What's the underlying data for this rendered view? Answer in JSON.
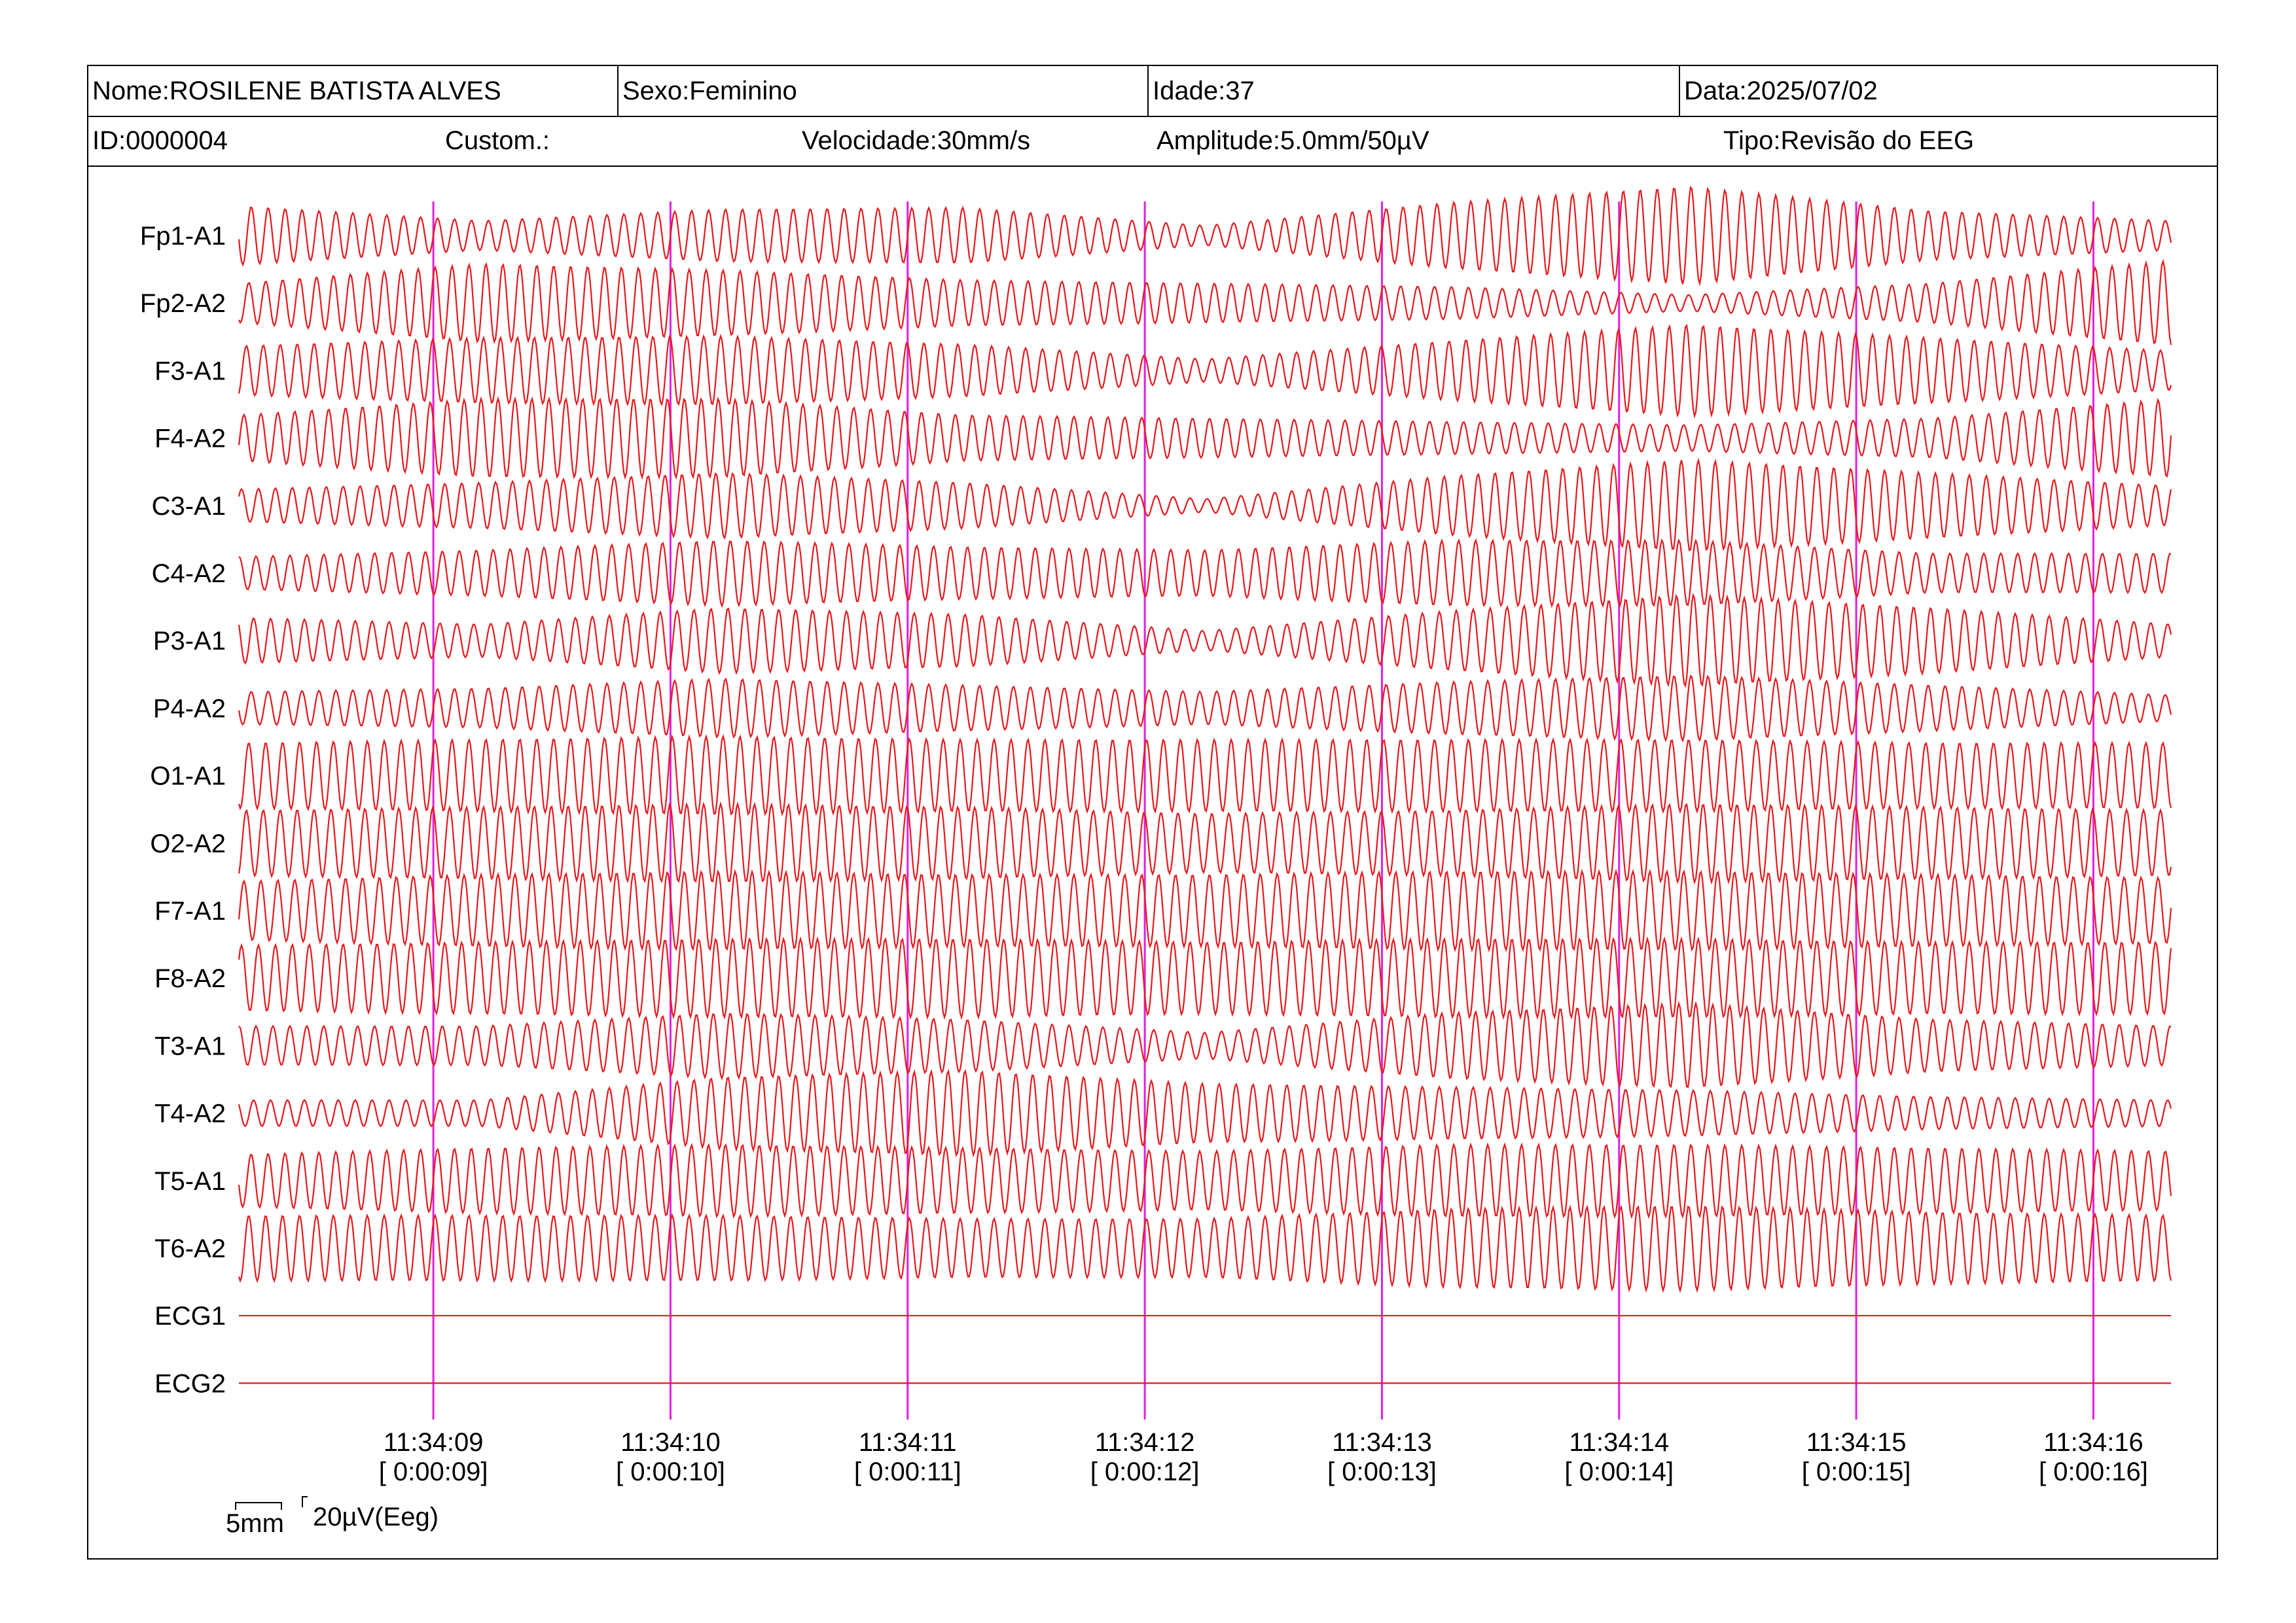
{
  "header": {
    "nome": "Nome:ROSILENE BATISTA ALVES",
    "sexo": "Sexo:Feminino",
    "idade": "Idade:37",
    "data": "Data:2025/07/02",
    "id": "ID:0000004",
    "custom": "Custom.:",
    "velocidade": "Velocidade:30mm/s",
    "amplitude": "Amplitude:5.0mm/50µV",
    "tipo": "Tipo:Revisão do EEG"
  },
  "scale": {
    "time_bar": "5mm",
    "amp_bar": "20µV(Eeg)"
  },
  "colors": {
    "trace": "#e8171b",
    "marker": "#e020e0",
    "text": "#000000"
  },
  "chart_data": {
    "type": "line",
    "channels": [
      "Fp1-A1",
      "Fp2-A2",
      "F3-A1",
      "F4-A2",
      "C3-A1",
      "C4-A2",
      "P3-A1",
      "P4-A2",
      "O1-A1",
      "O2-A2",
      "F7-A1",
      "F8-A2",
      "T3-A1",
      "T4-A2",
      "T5-A1",
      "T6-A2",
      "ECG1",
      "ECG2"
    ],
    "time_markers": [
      {
        "time": "11:34:09",
        "elapsed": "[ 0:00:09]"
      },
      {
        "time": "11:34:10",
        "elapsed": "[ 0:00:10]"
      },
      {
        "time": "11:34:11",
        "elapsed": "[ 0:00:11]"
      },
      {
        "time": "11:34:12",
        "elapsed": "[ 0:00:12]"
      },
      {
        "time": "11:34:13",
        "elapsed": "[ 0:00:13]"
      },
      {
        "time": "11:34:14",
        "elapsed": "[ 0:00:14]"
      },
      {
        "time": "11:34:15",
        "elapsed": "[ 0:00:15]"
      },
      {
        "time": "11:34:16",
        "elapsed": "[ 0:00:16]"
      }
    ],
    "x_range_s": [
      8.18,
      16.33
    ],
    "dominant_frequency_hz": 14,
    "amplitude_envelopes_uV": [
      {
        "channel": "Fp1-A1",
        "values": [
          18,
          9,
          16,
          17,
          6,
          20,
          30,
          15,
          9
        ]
      },
      {
        "channel": "Fp2-A2",
        "values": [
          12,
          24,
          20,
          14,
          12,
          10,
          5,
          12,
          26
        ]
      },
      {
        "channel": "F3-A1",
        "values": [
          15,
          20,
          21,
          16,
          7,
          18,
          28,
          20,
          12
        ]
      },
      {
        "channel": "F4-A2",
        "values": [
          14,
          24,
          24,
          14,
          12,
          10,
          8,
          12,
          24
        ]
      },
      {
        "channel": "C3-A1",
        "values": [
          10,
          14,
          20,
          14,
          4,
          18,
          28,
          20,
          12
        ]
      },
      {
        "channel": "C4-A2",
        "values": [
          10,
          14,
          20,
          16,
          14,
          20,
          20,
          12,
          12
        ]
      },
      {
        "channel": "P3-A1",
        "values": [
          14,
          10,
          20,
          16,
          6,
          18,
          28,
          20,
          10
        ]
      },
      {
        "channel": "P4-A2",
        "values": [
          10,
          12,
          18,
          14,
          10,
          16,
          20,
          14,
          8
        ]
      },
      {
        "channel": "O1-A1",
        "values": [
          20,
          22,
          24,
          22,
          22,
          22,
          22,
          20,
          20
        ]
      },
      {
        "channel": "O2-A2",
        "values": [
          20,
          22,
          24,
          22,
          18,
          20,
          24,
          22,
          20
        ]
      },
      {
        "channel": "F7-A1",
        "values": [
          18,
          22,
          24,
          22,
          22,
          24,
          24,
          22,
          20
        ]
      },
      {
        "channel": "F8-A2",
        "values": [
          20,
          22,
          24,
          24,
          22,
          24,
          24,
          22,
          22
        ]
      },
      {
        "channel": "T3-A1",
        "values": [
          12,
          12,
          20,
          16,
          8,
          20,
          26,
          16,
          12
        ]
      },
      {
        "channel": "T4-A2",
        "values": [
          8,
          8,
          22,
          26,
          18,
          16,
          14,
          10,
          8
        ]
      },
      {
        "channel": "T5-A1",
        "values": [
          16,
          20,
          22,
          20,
          18,
          22,
          22,
          20,
          18
        ]
      },
      {
        "channel": "T6-A2",
        "values": [
          20,
          20,
          20,
          18,
          18,
          24,
          26,
          22,
          20
        ]
      },
      {
        "channel": "ECG1",
        "values": [
          0,
          0,
          0,
          0,
          0,
          0,
          0,
          0,
          0
        ]
      },
      {
        "channel": "ECG2",
        "values": [
          0,
          0,
          0,
          0,
          0,
          0,
          0,
          0,
          0
        ]
      }
    ]
  }
}
